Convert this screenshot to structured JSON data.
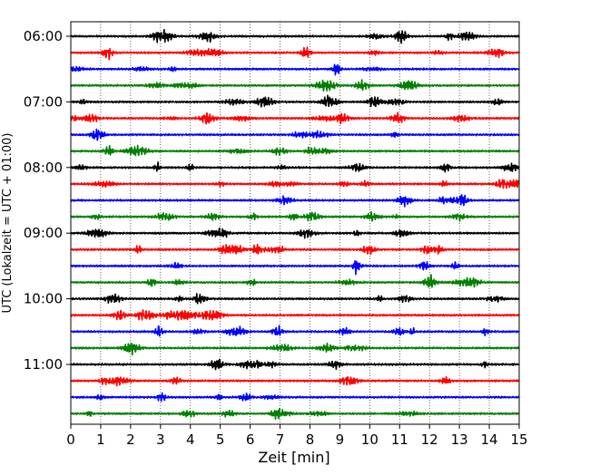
{
  "chart_data": {
    "type": "line",
    "title": "",
    "xlabel": "Zeit  [min]",
    "ylabel": "UTC (Lokalzeit = UTC + 01:00)",
    "xlim": [
      0,
      15
    ],
    "x_ticks": [
      "0",
      "1",
      "2",
      "3",
      "4",
      "5",
      "6",
      "7",
      "8",
      "9",
      "10",
      "11",
      "12",
      "13",
      "14",
      "15"
    ],
    "y_ticks": [
      "06:00",
      "07:00",
      "08:00",
      "09:00",
      "10:00",
      "11:00"
    ],
    "grid": {
      "x": true,
      "y": false,
      "style": "dotted"
    },
    "trace_count": 24,
    "trace_interval_minutes": 15,
    "first_trace": "06:00",
    "last_trace": "11:45",
    "trace_colors": [
      "#000000",
      "#ff0000",
      "#0000ff",
      "#008000"
    ],
    "legend": "none"
  }
}
